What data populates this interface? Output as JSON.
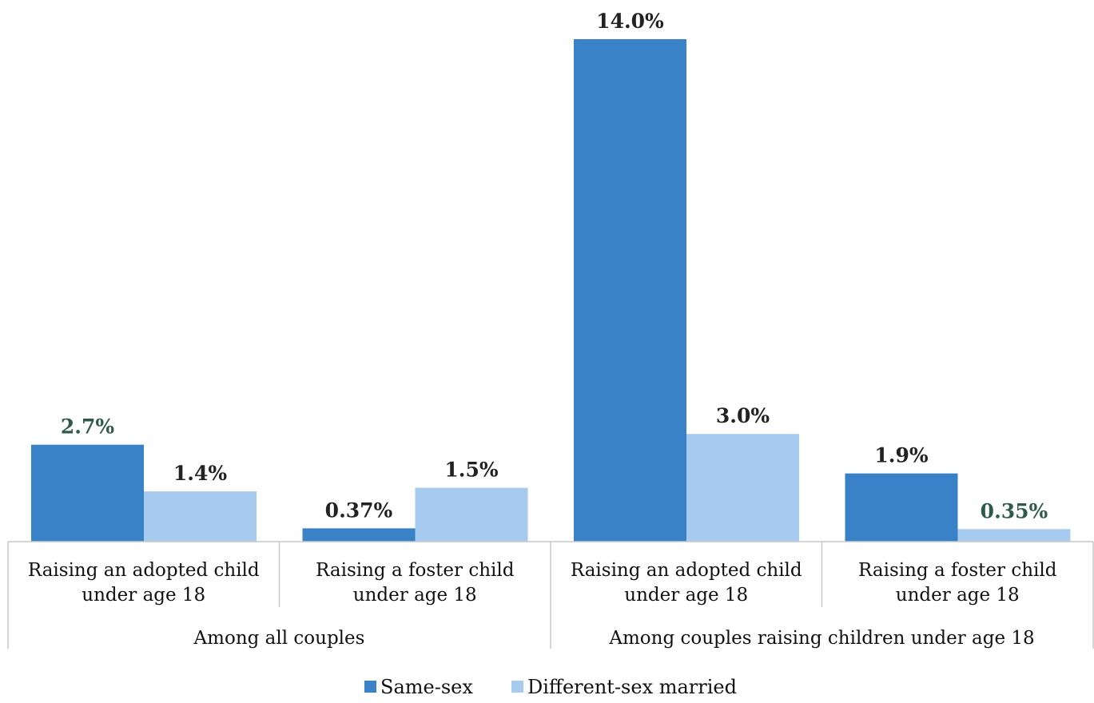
{
  "chart_data": {
    "type": "bar",
    "categories": [
      "Raising an adopted child under age 18",
      "Raising a foster child under age 18",
      "Raising an adopted child under age 18",
      "Raising a foster child under age 18"
    ],
    "category_lines": [
      [
        "Raising an adopted child",
        "under age 18"
      ],
      [
        "Raising a foster child",
        "under age 18"
      ],
      [
        "Raising an adopted child",
        "under age 18"
      ],
      [
        "Raising a foster child",
        "under age 18"
      ]
    ],
    "groups": [
      {
        "label": "Among all couples",
        "categories": [
          0,
          1
        ]
      },
      {
        "label": "Among couples raising children under age 18",
        "categories": [
          2,
          3
        ]
      }
    ],
    "series": [
      {
        "name": "Same-sex",
        "color": "#3a82c8",
        "values": [
          2.7,
          0.37,
          14.0,
          1.9
        ],
        "labels": [
          "2.7%",
          "0.37%",
          "14.0%",
          "1.9%"
        ]
      },
      {
        "name": "Different-sex married",
        "color": "#a6cbee",
        "values": [
          1.4,
          1.5,
          3.0,
          0.35
        ],
        "labels": [
          "1.4%",
          "1.5%",
          "3.0%",
          "0.35%"
        ]
      }
    ],
    "label_colors": [
      "#2e5a4e",
      "#222222",
      "#222222",
      "#222222",
      "#222222",
      "#222222",
      "#222222",
      "#2e5a4e"
    ],
    "ylim": [
      0,
      14.0
    ],
    "grid": false,
    "legend": "bottom"
  }
}
